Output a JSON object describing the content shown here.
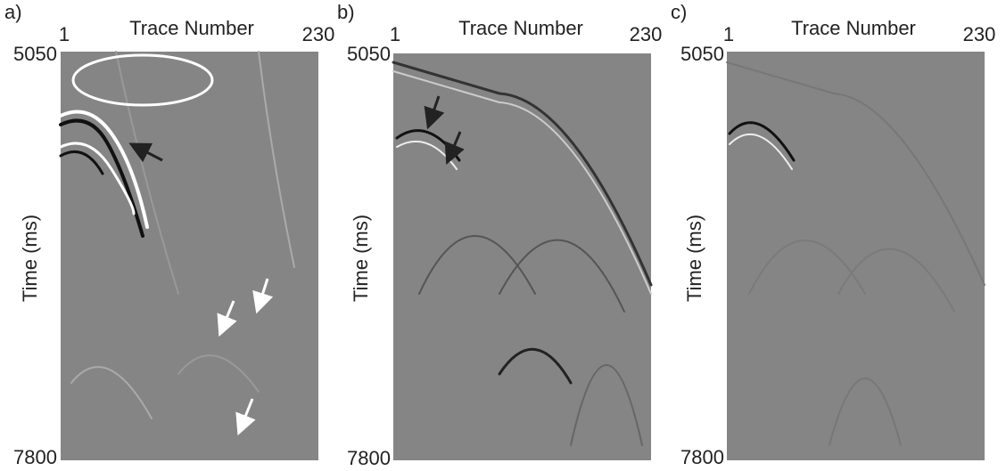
{
  "panels": [
    {
      "label": "a)",
      "x_label": "Trace Number",
      "x_ticks": [
        "1",
        "230"
      ],
      "y_label": "Time (ms)",
      "y_ticks": [
        "5050",
        "7800"
      ]
    },
    {
      "label": "b)",
      "x_label": "Trace Number",
      "x_ticks": [
        "1",
        "230"
      ],
      "y_label": "Time (ms)",
      "y_ticks": [
        "5050",
        "7800"
      ]
    },
    {
      "label": "c)",
      "x_label": "Trace Number",
      "x_ticks": [
        "1",
        "230"
      ],
      "y_label": "Time (ms)",
      "y_ticks": [
        "5050",
        "7800"
      ]
    }
  ]
}
